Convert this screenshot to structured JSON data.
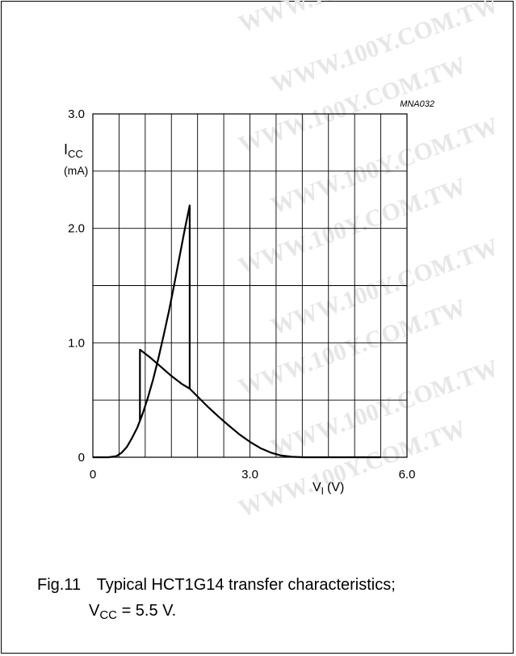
{
  "figure_code": "MNA032",
  "watermark_text": "WWW.100Y.COM.TW",
  "caption": {
    "fig_label": "Fig.11",
    "text": "Typical HCT1G14 transfer characteristics;",
    "cond_main": "V",
    "cond_sub": "CC",
    "cond_rest": " = 5.5 V."
  },
  "chart_data": {
    "type": "line",
    "title": "",
    "xlabel_main": "V",
    "xlabel_sub": "I",
    "xlabel_unit": "(V)",
    "ylabel_main": "I",
    "ylabel_sub": "CC",
    "ylabel_unit": "(mA)",
    "xlim": [
      0,
      6.0
    ],
    "ylim": [
      0,
      3.0
    ],
    "x_ticks": [
      {
        "value": 0,
        "label": "0"
      },
      {
        "value": 3.0,
        "label": "3.0"
      },
      {
        "value": 6.0,
        "label": "6.0"
      }
    ],
    "y_ticks": [
      {
        "value": 0,
        "label": "0"
      },
      {
        "value": 1.0,
        "label": "1.0"
      },
      {
        "value": 2.0,
        "label": "2.0"
      },
      {
        "value": 3.0,
        "label": "3.0"
      }
    ],
    "grid": true,
    "grid_x_step": 0.5,
    "grid_y_step": 0.5,
    "line_color": "#000000",
    "series": [
      {
        "values": [
          [
            0,
            0
          ],
          [
            0.3,
            0
          ],
          [
            0.45,
            0.01
          ],
          [
            0.55,
            0.04
          ],
          [
            0.65,
            0.09
          ],
          [
            0.75,
            0.17
          ],
          [
            0.85,
            0.26
          ],
          [
            0.95,
            0.38
          ],
          [
            1.05,
            0.52
          ],
          [
            1.15,
            0.68
          ],
          [
            1.25,
            0.86
          ],
          [
            1.35,
            1.06
          ],
          [
            1.45,
            1.27
          ],
          [
            1.55,
            1.5
          ],
          [
            1.65,
            1.74
          ],
          [
            1.75,
            1.98
          ],
          [
            1.85,
            2.2
          ],
          [
            1.85,
            0.6
          ],
          [
            2.0,
            0.53
          ],
          [
            2.2,
            0.44
          ],
          [
            2.4,
            0.355
          ],
          [
            2.6,
            0.275
          ],
          [
            2.8,
            0.2
          ],
          [
            3.0,
            0.135
          ],
          [
            3.2,
            0.08
          ],
          [
            3.4,
            0.04
          ],
          [
            3.6,
            0.015
          ],
          [
            3.8,
            0.004
          ],
          [
            4.0,
            0
          ],
          [
            5.5,
            0
          ]
        ]
      },
      {
        "values": [
          [
            0.9,
            0.32
          ],
          [
            0.9,
            0.94
          ],
          [
            1.1,
            0.87
          ],
          [
            1.3,
            0.79
          ],
          [
            1.5,
            0.71
          ],
          [
            1.7,
            0.64
          ],
          [
            1.85,
            0.6
          ]
        ]
      }
    ]
  }
}
